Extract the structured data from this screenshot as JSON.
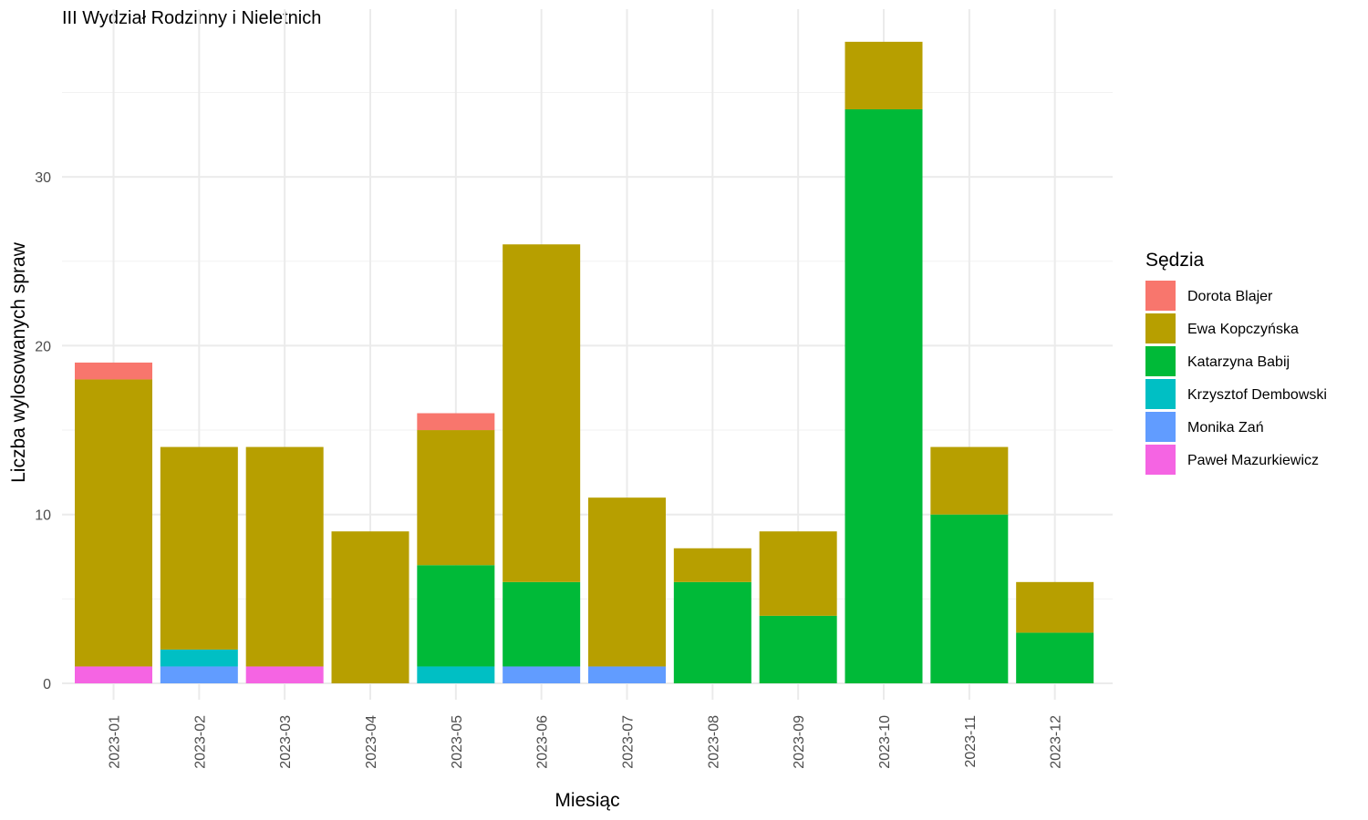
{
  "chart_data": {
    "type": "bar",
    "stacked": true,
    "title": "III Wydział Rodzinny i Nieletnich",
    "xlabel": "Miesiąc",
    "ylabel": "Liczba wylosowanych spraw",
    "ylim": [
      0,
      38
    ],
    "y_ticks": [
      0,
      10,
      20,
      30
    ],
    "grid": true,
    "legend_title": "Sędzia",
    "legend_position": "right",
    "categories": [
      "2023-01",
      "2023-02",
      "2023-03",
      "2023-04",
      "2023-05",
      "2023-06",
      "2023-07",
      "2023-08",
      "2023-09",
      "2023-10",
      "2023-11",
      "2023-12"
    ],
    "series": [
      {
        "name": "Dorota Blajer",
        "color": "#F8766D",
        "values": [
          1,
          0,
          0,
          0,
          1,
          0,
          0,
          0,
          0,
          0,
          0,
          0
        ]
      },
      {
        "name": "Ewa Kopczyńska",
        "color": "#B79F00",
        "values": [
          17,
          12,
          13,
          9,
          8,
          20,
          10,
          2,
          5,
          4,
          4,
          3
        ]
      },
      {
        "name": "Katarzyna Babij",
        "color": "#00BA38",
        "values": [
          0,
          0,
          0,
          0,
          6,
          5,
          0,
          6,
          4,
          34,
          10,
          3
        ]
      },
      {
        "name": "Krzysztof Dembowski",
        "color": "#00BFC4",
        "values": [
          0,
          1,
          0,
          0,
          1,
          0,
          0,
          0,
          0,
          0,
          0,
          0
        ]
      },
      {
        "name": "Monika Zań",
        "color": "#619CFF",
        "values": [
          0,
          1,
          0,
          0,
          0,
          1,
          1,
          0,
          0,
          0,
          0,
          0
        ]
      },
      {
        "name": "Paweł Mazurkiewicz",
        "color": "#F564E3",
        "values": [
          1,
          0,
          1,
          0,
          0,
          0,
          0,
          0,
          0,
          0,
          0,
          0
        ]
      }
    ]
  }
}
